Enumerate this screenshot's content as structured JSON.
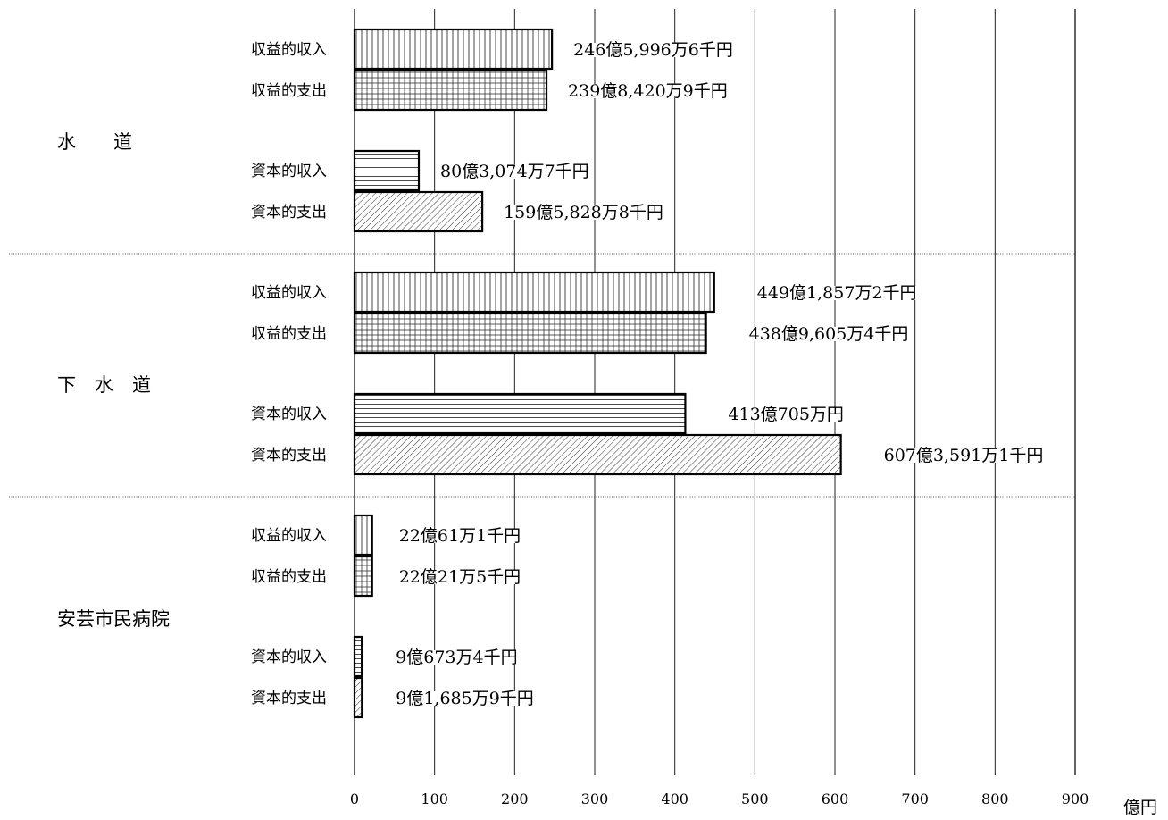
{
  "chart_data": {
    "type": "bar",
    "orientation": "horizontal",
    "unit": "億円",
    "xlim": [
      0,
      900
    ],
    "x_ticks": [
      "0",
      "100",
      "200",
      "300",
      "400",
      "500",
      "600",
      "700",
      "800",
      "900"
    ],
    "grid": "vertical",
    "groups": [
      {
        "label": "水　　道",
        "items": [
          {
            "category": "収益的収入",
            "value": 246.6,
            "label": "246億5,996万6千円",
            "pattern": "vertical"
          },
          {
            "category": "収益的支出",
            "value": 239.8,
            "label": "239億8,420万9千円",
            "pattern": "grid"
          },
          {
            "category": "資本的収入",
            "value": 80.3,
            "label": "80億3,074万7千円",
            "pattern": "horizontal"
          },
          {
            "category": "資本的支出",
            "value": 159.6,
            "label": "159億5,828万8千円",
            "pattern": "diagonal"
          }
        ]
      },
      {
        "label": "下　水　道",
        "items": [
          {
            "category": "収益的収入",
            "value": 449.2,
            "label": "449億1,857万2千円",
            "pattern": "vertical"
          },
          {
            "category": "収益的支出",
            "value": 439.0,
            "label": "438億9,605万4千円",
            "pattern": "grid"
          },
          {
            "category": "資本的収入",
            "value": 413.1,
            "label": "413億705万円",
            "pattern": "horizontal"
          },
          {
            "category": "資本的支出",
            "value": 607.4,
            "label": "607億3,591万1千円",
            "pattern": "diagonal"
          }
        ]
      },
      {
        "label": "安芸市民病院",
        "items": [
          {
            "category": "収益的収入",
            "value": 22.0,
            "label": "22億61万1千円",
            "pattern": "vertical"
          },
          {
            "category": "収益的支出",
            "value": 22.0,
            "label": "22億21万5千円",
            "pattern": "grid"
          },
          {
            "category": "資本的収入",
            "value": 9.1,
            "label": "9億673万4千円",
            "pattern": "horizontal"
          },
          {
            "category": "資本的支出",
            "value": 9.2,
            "label": "9億1,685万9千円",
            "pattern": "diagonal"
          }
        ]
      }
    ]
  }
}
